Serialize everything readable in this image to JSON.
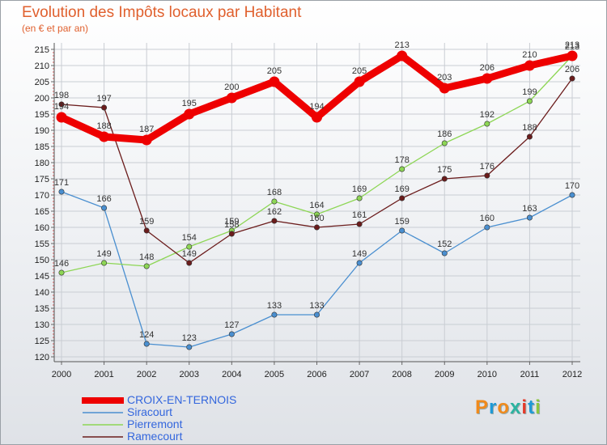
{
  "chart_data": {
    "type": "line",
    "title": "Evolution des Impôts locaux par Habitant",
    "subtitle": "(en € et par an)",
    "xlabel": "",
    "ylabel": "",
    "ylim": [
      120,
      215
    ],
    "yticks": [
      120,
      125,
      130,
      135,
      140,
      145,
      150,
      155,
      160,
      165,
      170,
      175,
      180,
      185,
      190,
      195,
      200,
      205,
      210,
      215
    ],
    "categories": [
      "2000",
      "2001",
      "2002",
      "2003",
      "2004",
      "2005",
      "2006",
      "2007",
      "2008",
      "2009",
      "2010",
      "2011",
      "2012"
    ],
    "series": [
      {
        "name": "Siracourt",
        "color": "#4a8fd0",
        "values": [
          171,
          166,
          124,
          123,
          127,
          133,
          133,
          149,
          159,
          152,
          160,
          163,
          170
        ]
      },
      {
        "name": "Pierremont",
        "color": "#8dd655",
        "values": [
          146,
          149,
          148,
          154,
          159,
          168,
          164,
          169,
          178,
          186,
          192,
          199,
          213
        ]
      },
      {
        "name": "Ramecourt",
        "color": "#6b1c1c",
        "values": [
          198,
          197,
          159,
          149,
          158,
          162,
          160,
          161,
          169,
          175,
          176,
          188,
          206
        ]
      },
      {
        "name": "CROIX-EN-TERNOIS",
        "color": "#ee0000",
        "values": [
          194,
          188,
          187,
          195,
          200,
          205,
          194,
          205,
          213,
          203,
          206,
          210,
          213
        ]
      }
    ],
    "legend": [
      "CROIX-EN-TERNOIS",
      "Siracourt",
      "Pierremont",
      "Ramecourt"
    ]
  },
  "logo_text": "Proxiti"
}
